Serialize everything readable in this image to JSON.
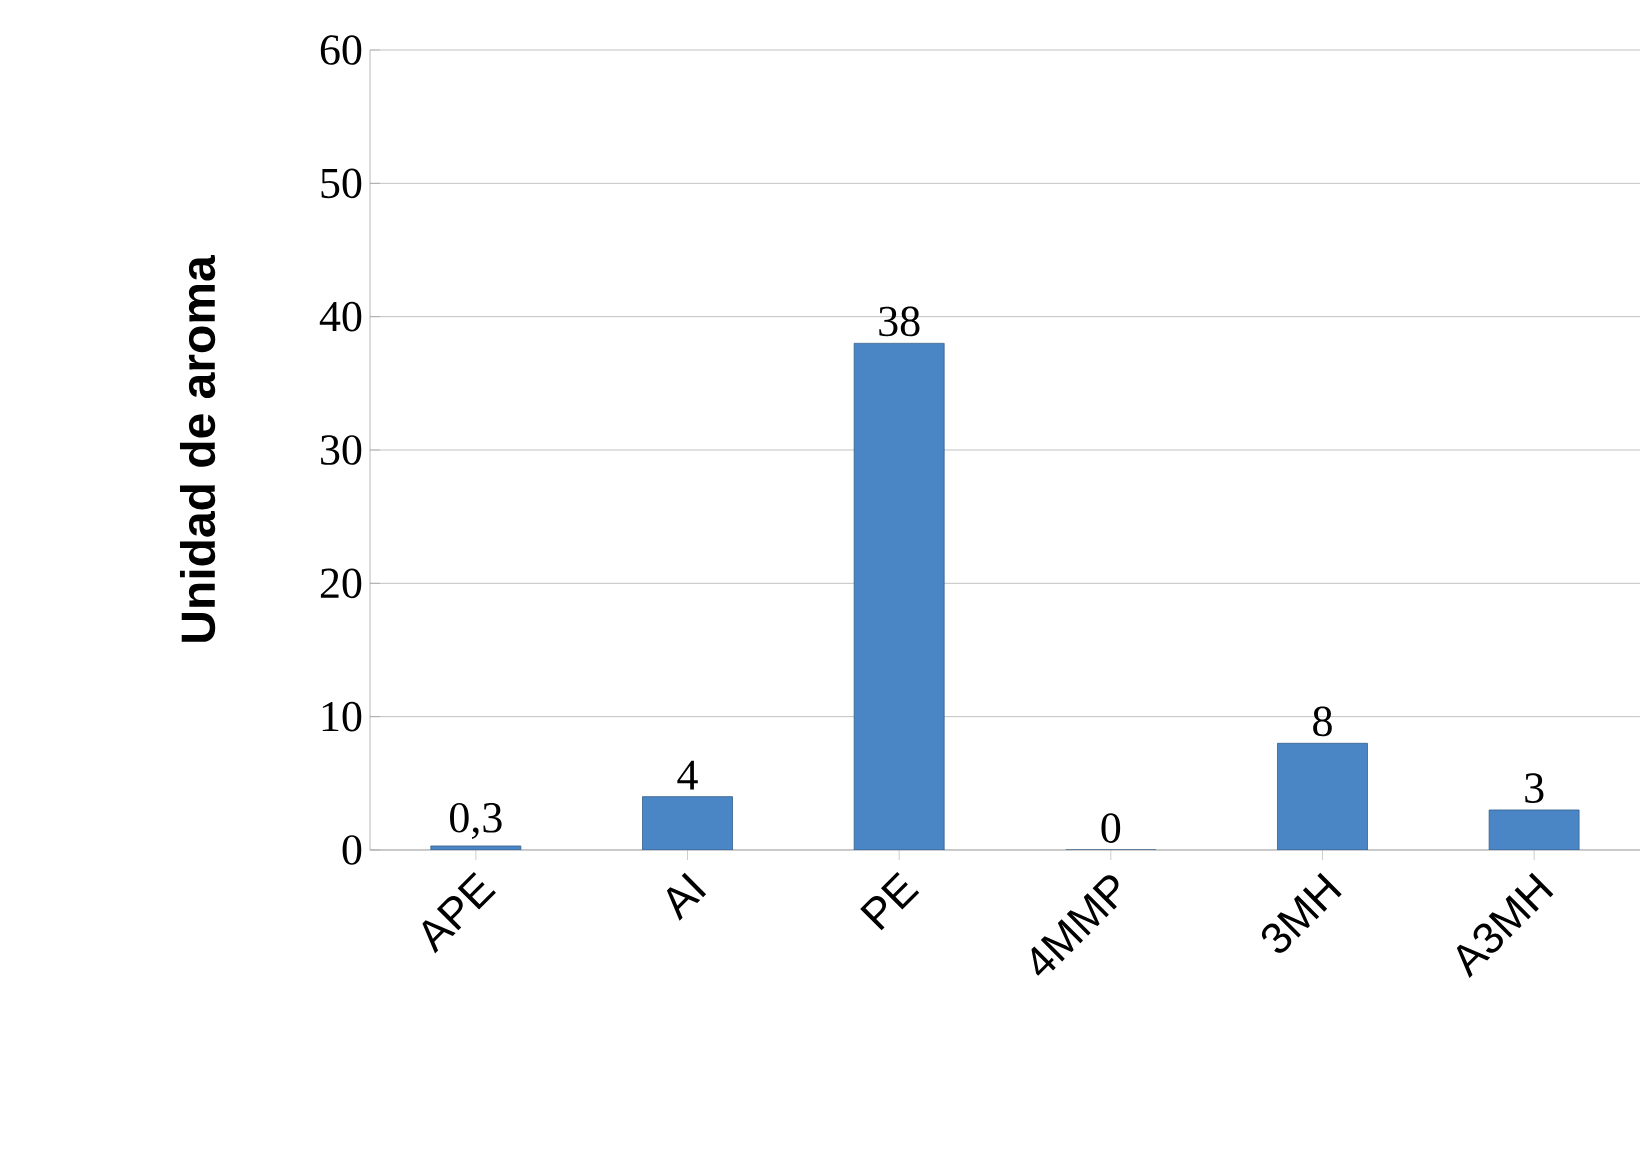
{
  "chart_data": {
    "type": "bar",
    "ylabel": "Unidad de aroma",
    "categories": [
      "APE",
      "AI",
      "PE",
      "4MMP",
      "3MH",
      "A3MH"
    ],
    "values": [
      0.3,
      4,
      38,
      0,
      8,
      3
    ],
    "value_labels": [
      "0,3",
      "4",
      "38",
      "0",
      "8",
      "3"
    ],
    "color": "#4a86c5",
    "ylim": [
      0,
      60
    ],
    "yticks": [
      0,
      10,
      20,
      30,
      40,
      50,
      60
    ],
    "grid": "y"
  }
}
